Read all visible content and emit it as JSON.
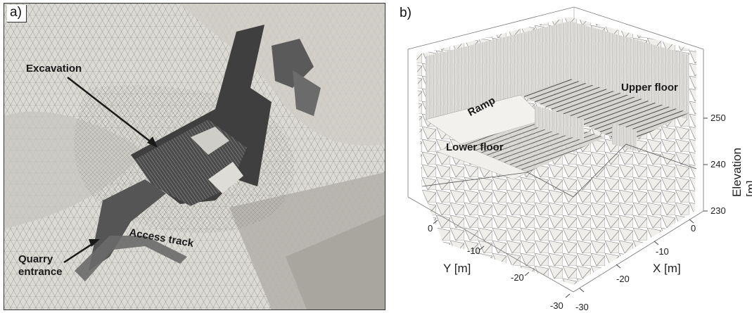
{
  "panel_a": {
    "label": "a)",
    "annotations": {
      "excavation": "Excavation",
      "access_track": "Access track",
      "quarry_entrance": "Quarry\nentrance"
    }
  },
  "panel_b": {
    "label": "b)",
    "annotations": {
      "ramp": "Ramp",
      "upper_floor": "Upper floor",
      "lower_floor": "Lower floor"
    },
    "axes": {
      "y_title": "Y [m]",
      "x_title": "X [m]",
      "z_title": "Elevation [m]",
      "y_ticks": [
        "0",
        "-10",
        "-20",
        "-30"
      ],
      "x_ticks": [
        "0",
        "-10",
        "-20",
        "-30"
      ],
      "z_ticks": [
        "250",
        "240",
        "230"
      ]
    }
  },
  "colors": {
    "terrain_light": "#e4e2dd",
    "terrain_mid": "#b9b6af",
    "terrain_dark": "#4a4a4a",
    "mesh_line": "#8c8c8c"
  }
}
